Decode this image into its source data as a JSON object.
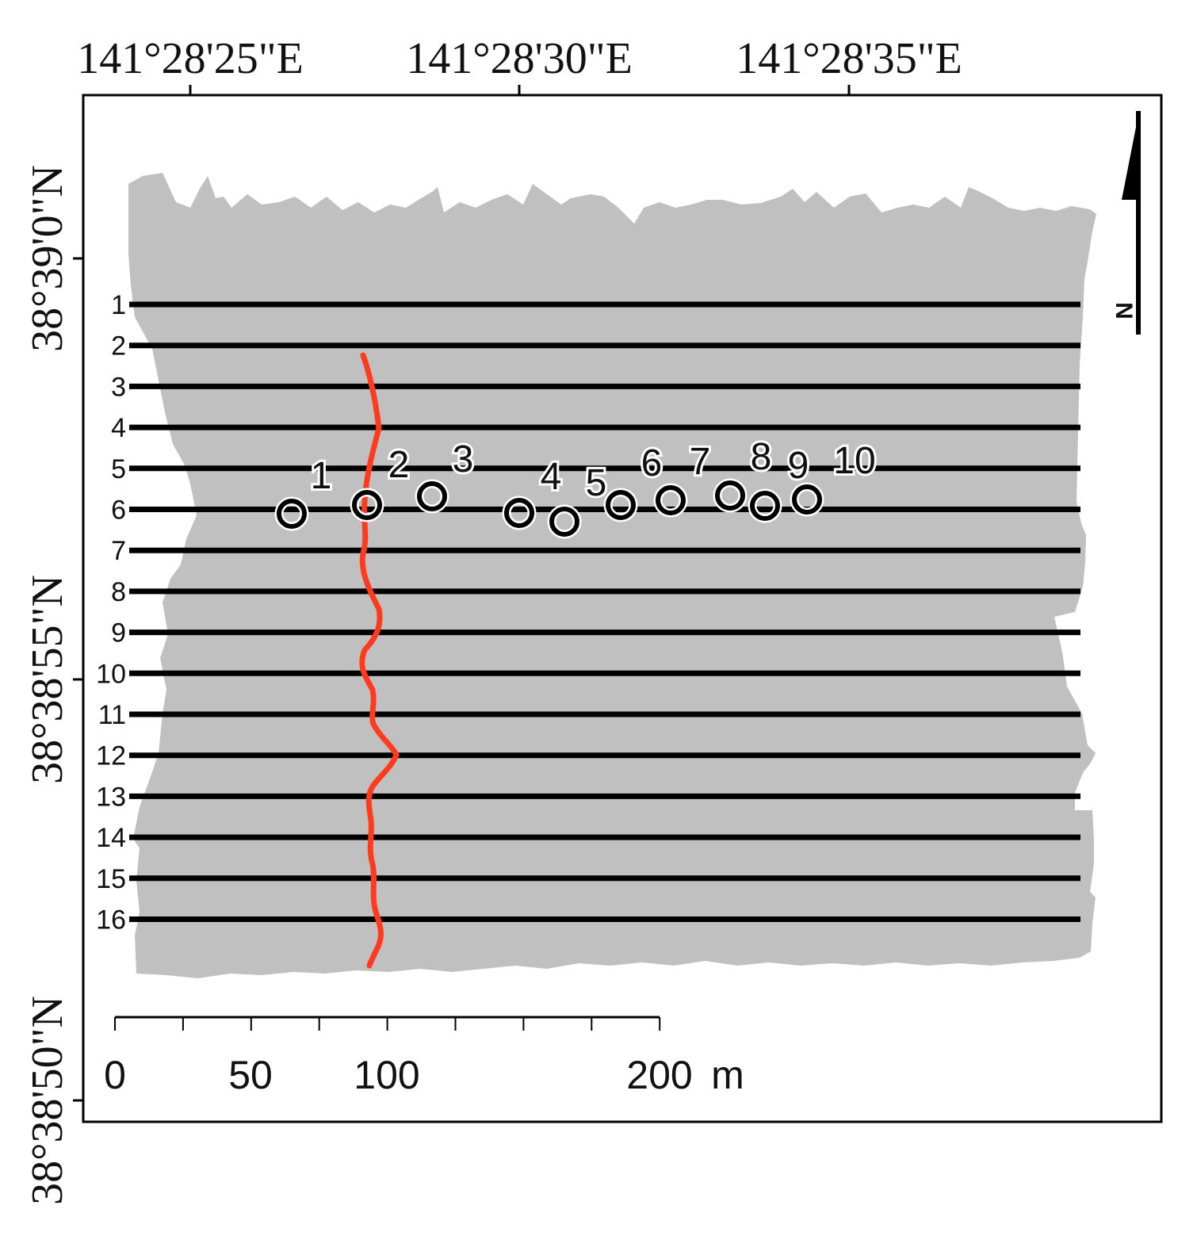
{
  "longitude_labels": [
    "141°28'25\"E",
    "141°28'30\"E",
    "141°28'35\"E"
  ],
  "latitude_labels": [
    "38°39'0\"N",
    "38°38'55\"N",
    "38°38'50\"N"
  ],
  "survey_lines": [
    "1",
    "2",
    "3",
    "4",
    "5",
    "6",
    "7",
    "8",
    "9",
    "10",
    "11",
    "12",
    "13",
    "14",
    "15",
    "16"
  ],
  "sites": [
    "1",
    "2",
    "3",
    "4",
    "5",
    "6",
    "7",
    "8",
    "9",
    "10"
  ],
  "scale_bar": {
    "labels": [
      "0",
      "50",
      "100",
      "200"
    ],
    "unit": "m"
  },
  "north_arrow": {
    "label": "N"
  },
  "colors": {
    "survey_area": "#c0c0c0",
    "survey_line": "#000000",
    "river_trace": "#ff3b1f",
    "site_marker": "#000000",
    "frame": "#000000"
  }
}
